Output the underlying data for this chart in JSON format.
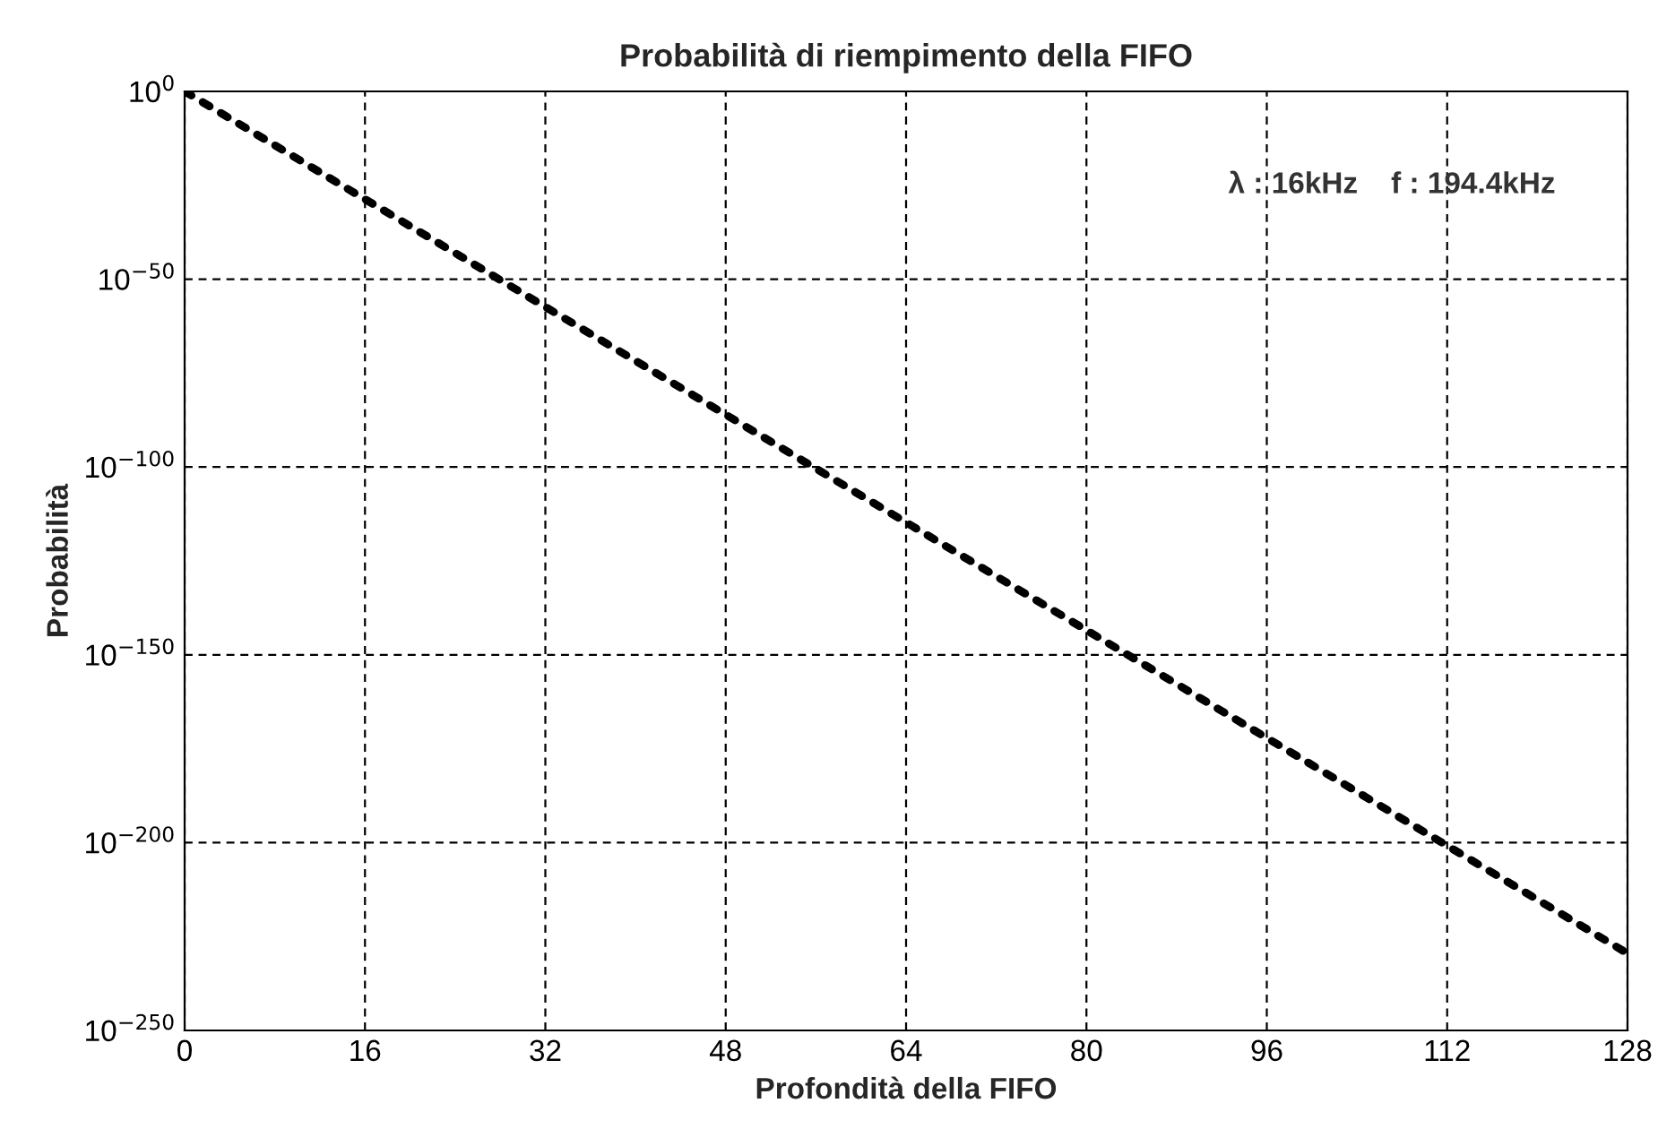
{
  "chart_data": {
    "type": "line",
    "title": "Probabilità di riempimento della FIFO",
    "xlabel": "Profondità della FIFO",
    "ylabel": "Probabilità",
    "x": [
      0,
      8,
      16,
      24,
      32,
      40,
      48,
      56,
      64,
      72,
      80,
      88,
      96,
      104,
      112,
      120,
      128
    ],
    "series": [
      {
        "color": "#000000",
        "values": [
          1,
          4.6e-15,
          2e-29,
          9.3e-44,
          4.2e-58,
          1.9e-72,
          8.7e-87,
          3.9e-101,
          1.8e-115,
          8e-130,
          3.6e-144,
          1.7e-158,
          7.4e-173,
          3.4e-187,
          1.5e-201,
          6.9e-216,
          3.2e-230
        ]
      }
    ],
    "log": "y",
    "xlim": [
      0,
      128
    ],
    "ylim": [
      1e-250,
      1
    ],
    "xticks": [
      0,
      16,
      32,
      48,
      64,
      80,
      96,
      112,
      128
    ],
    "yticks": [
      {
        "value": 1e-250,
        "label": "10$^{−250}$"
      },
      {
        "value": 1e-200,
        "label": "10$^{−200}$"
      },
      {
        "value": 1e-150,
        "label": "10$^{−150}$"
      },
      {
        "value": 1e-100,
        "label": "10$^{−100}$"
      },
      {
        "value": 1e-50,
        "label": "10$^{−50}$"
      },
      {
        "value": 1,
        "label": "10$^{0}$"
      }
    ],
    "grid": true,
    "line_style": "dotted",
    "legend": false,
    "annotations": [
      "λ : 16kHz    f : 194.4kHz"
    ]
  }
}
